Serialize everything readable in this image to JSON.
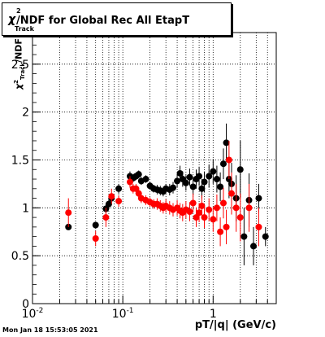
{
  "chart_data": {
    "type": "scatter",
    "title": "/NDF for Global Rec All EtapT",
    "title_symbol": "χ",
    "title_sup": "2",
    "title_sub": "Track",
    "xlabel": "pT/|q| (GeV/c)",
    "ylabel": "/NDF",
    "x_scale": "log",
    "xlim": [
      0.01,
      5.0
    ],
    "ylim": [
      0,
      2.83
    ],
    "x_ticks": [
      {
        "value": 0.01,
        "base": "10",
        "exp": "-2"
      },
      {
        "value": 0.1,
        "base": "10",
        "exp": "-1"
      },
      {
        "value": 1,
        "base": "1",
        "exp": ""
      }
    ],
    "y_ticks": [
      0,
      0.5,
      1,
      1.5,
      2,
      2.5
    ],
    "grid": true,
    "series": [
      {
        "color": "#000000",
        "points": [
          [
            0.025,
            0.8,
            0.015
          ],
          [
            0.05,
            0.82,
            0.03
          ],
          [
            0.065,
            0.99,
            0.05
          ],
          [
            0.07,
            1.04,
            0.05
          ],
          [
            0.075,
            1.1,
            0.05
          ],
          [
            0.09,
            1.2,
            0.05
          ],
          [
            0.12,
            1.33,
            0.05
          ],
          [
            0.13,
            1.31,
            0.04
          ],
          [
            0.14,
            1.33,
            0.04
          ],
          [
            0.15,
            1.35,
            0.04
          ],
          [
            0.16,
            1.28,
            0.04
          ],
          [
            0.18,
            1.3,
            0.04
          ],
          [
            0.2,
            1.23,
            0.04
          ],
          [
            0.22,
            1.2,
            0.04
          ],
          [
            0.24,
            1.19,
            0.05
          ],
          [
            0.26,
            1.18,
            0.05
          ],
          [
            0.28,
            1.17,
            0.05
          ],
          [
            0.3,
            1.2,
            0.05
          ],
          [
            0.33,
            1.19,
            0.06
          ],
          [
            0.36,
            1.21,
            0.06
          ],
          [
            0.4,
            1.28,
            0.07
          ],
          [
            0.43,
            1.36,
            0.08
          ],
          [
            0.46,
            1.3,
            0.08
          ],
          [
            0.5,
            1.26,
            0.08
          ],
          [
            0.55,
            1.32,
            0.09
          ],
          [
            0.6,
            1.22,
            0.09
          ],
          [
            0.65,
            1.3,
            0.1
          ],
          [
            0.7,
            1.33,
            0.1
          ],
          [
            0.75,
            1.2,
            0.1
          ],
          [
            0.8,
            1.27,
            0.11
          ],
          [
            0.9,
            1.33,
            0.12
          ],
          [
            1.0,
            1.38,
            0.13
          ],
          [
            1.1,
            1.3,
            0.14
          ],
          [
            1.2,
            1.22,
            0.15
          ],
          [
            1.3,
            1.46,
            0.16
          ],
          [
            1.4,
            1.68,
            0.2
          ],
          [
            1.5,
            1.3,
            0.2
          ],
          [
            1.6,
            1.25,
            0.22
          ],
          [
            1.8,
            1.1,
            0.24
          ],
          [
            2.0,
            1.4,
            0.3
          ],
          [
            2.2,
            0.7,
            0.3
          ],
          [
            2.5,
            1.08,
            0.28
          ],
          [
            2.8,
            0.6,
            0.2
          ],
          [
            3.2,
            1.1,
            0.15
          ],
          [
            3.8,
            0.7,
            0.1
          ]
        ]
      },
      {
        "color": "#ff0000",
        "points": [
          [
            0.025,
            0.95,
            0.15
          ],
          [
            0.05,
            0.68,
            0.08
          ],
          [
            0.065,
            0.9,
            0.1
          ],
          [
            0.075,
            1.12,
            0.08
          ],
          [
            0.09,
            1.07,
            0.06
          ],
          [
            0.12,
            1.27,
            0.06
          ],
          [
            0.13,
            1.2,
            0.05
          ],
          [
            0.14,
            1.2,
            0.05
          ],
          [
            0.15,
            1.15,
            0.05
          ],
          [
            0.16,
            1.1,
            0.05
          ],
          [
            0.18,
            1.08,
            0.05
          ],
          [
            0.2,
            1.06,
            0.05
          ],
          [
            0.22,
            1.04,
            0.05
          ],
          [
            0.24,
            1.04,
            0.06
          ],
          [
            0.26,
            1.02,
            0.06
          ],
          [
            0.28,
            1.0,
            0.06
          ],
          [
            0.3,
            1.02,
            0.07
          ],
          [
            0.33,
            1.0,
            0.07
          ],
          [
            0.36,
            0.98,
            0.07
          ],
          [
            0.4,
            1.0,
            0.08
          ],
          [
            0.43,
            0.97,
            0.08
          ],
          [
            0.46,
            0.95,
            0.09
          ],
          [
            0.5,
            0.98,
            0.09
          ],
          [
            0.55,
            0.96,
            0.1
          ],
          [
            0.6,
            1.05,
            0.1
          ],
          [
            0.65,
            0.9,
            0.1
          ],
          [
            0.7,
            0.95,
            0.1
          ],
          [
            0.75,
            1.02,
            0.11
          ],
          [
            0.8,
            0.9,
            0.11
          ],
          [
            0.9,
            0.98,
            0.12
          ],
          [
            1.0,
            0.88,
            0.13
          ],
          [
            1.1,
            1.0,
            0.14
          ],
          [
            1.2,
            0.75,
            0.15
          ],
          [
            1.3,
            1.05,
            0.16
          ],
          [
            1.4,
            0.8,
            0.18
          ],
          [
            1.5,
            1.5,
            0.2
          ],
          [
            1.6,
            1.15,
            0.22
          ],
          [
            1.8,
            1.0,
            0.25
          ],
          [
            2.0,
            0.9,
            0.25
          ],
          [
            2.5,
            1.0,
            0.25
          ],
          [
            3.2,
            0.8,
            0.2
          ]
        ]
      }
    ]
  },
  "footer": {
    "timestamp": "Mon Jan 18 15:53:05 2021"
  }
}
